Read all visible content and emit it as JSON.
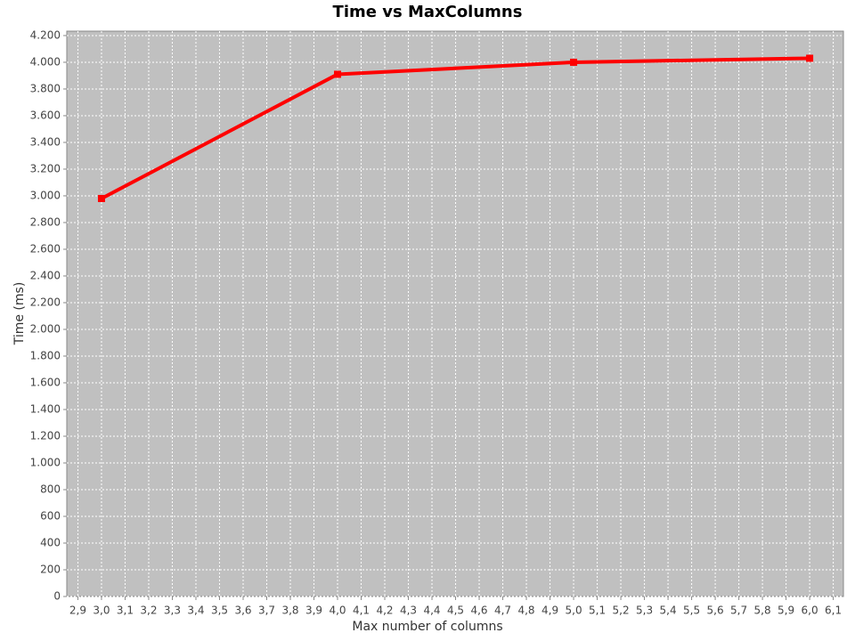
{
  "chart_data": {
    "type": "line",
    "title": "Time vs MaxColumns",
    "x_label": "Max number of columns",
    "y_label": "Time (ms)",
    "x": [
      3,
      4,
      5,
      6
    ],
    "series": [
      {
        "name": "Time",
        "color": "#ff0000",
        "values": [
          2980,
          3910,
          4000,
          4030
        ]
      }
    ],
    "xlim": [
      2.853,
      6.143
    ],
    "ylim": [
      0,
      4233
    ],
    "xticks": [
      {
        "value": 2.9,
        "label": "2,9"
      },
      {
        "value": 3.0,
        "label": "3,0"
      },
      {
        "value": 3.1,
        "label": "3,1"
      },
      {
        "value": 3.2,
        "label": "3,2"
      },
      {
        "value": 3.3,
        "label": "3,3"
      },
      {
        "value": 3.4,
        "label": "3,4"
      },
      {
        "value": 3.5,
        "label": "3,5"
      },
      {
        "value": 3.6,
        "label": "3,6"
      },
      {
        "value": 3.7,
        "label": "3,7"
      },
      {
        "value": 3.8,
        "label": "3,8"
      },
      {
        "value": 3.9,
        "label": "3,9"
      },
      {
        "value": 4.0,
        "label": "4,0"
      },
      {
        "value": 4.1,
        "label": "4,1"
      },
      {
        "value": 4.2,
        "label": "4,2"
      },
      {
        "value": 4.3,
        "label": "4,3"
      },
      {
        "value": 4.4,
        "label": "4,4"
      },
      {
        "value": 4.5,
        "label": "4,5"
      },
      {
        "value": 4.6,
        "label": "4,6"
      },
      {
        "value": 4.7,
        "label": "4,7"
      },
      {
        "value": 4.8,
        "label": "4,8"
      },
      {
        "value": 4.9,
        "label": "4,9"
      },
      {
        "value": 5.0,
        "label": "5,0"
      },
      {
        "value": 5.1,
        "label": "5,1"
      },
      {
        "value": 5.2,
        "label": "5,2"
      },
      {
        "value": 5.3,
        "label": "5,3"
      },
      {
        "value": 5.4,
        "label": "5,4"
      },
      {
        "value": 5.5,
        "label": "5,5"
      },
      {
        "value": 5.6,
        "label": "5,6"
      },
      {
        "value": 5.7,
        "label": "5,7"
      },
      {
        "value": 5.8,
        "label": "5,8"
      },
      {
        "value": 5.9,
        "label": "5,9"
      },
      {
        "value": 6.0,
        "label": "6,0"
      },
      {
        "value": 6.1,
        "label": "6,1"
      }
    ],
    "yticks": [
      0,
      200,
      400,
      600,
      800,
      {
        "value": 1000,
        "label": "1.000"
      },
      {
        "value": 1200,
        "label": "1.200"
      },
      {
        "value": 1400,
        "label": "1.400"
      },
      {
        "value": 1600,
        "label": "1.600"
      },
      {
        "value": 1800,
        "label": "1.800"
      },
      {
        "value": 2000,
        "label": "2.000"
      },
      {
        "value": 2200,
        "label": "2.200"
      },
      {
        "value": 2400,
        "label": "2.400"
      },
      {
        "value": 2600,
        "label": "2.600"
      },
      {
        "value": 2800,
        "label": "2.800"
      },
      {
        "value": 3000,
        "label": "3.000"
      },
      {
        "value": 3200,
        "label": "3.200"
      },
      {
        "value": 3400,
        "label": "3.400"
      },
      {
        "value": 3600,
        "label": "3.600"
      },
      {
        "value": 3800,
        "label": "3.800"
      },
      {
        "value": 4000,
        "label": "4.000"
      },
      {
        "value": 4200,
        "label": "4.200"
      }
    ],
    "grid": true
  }
}
